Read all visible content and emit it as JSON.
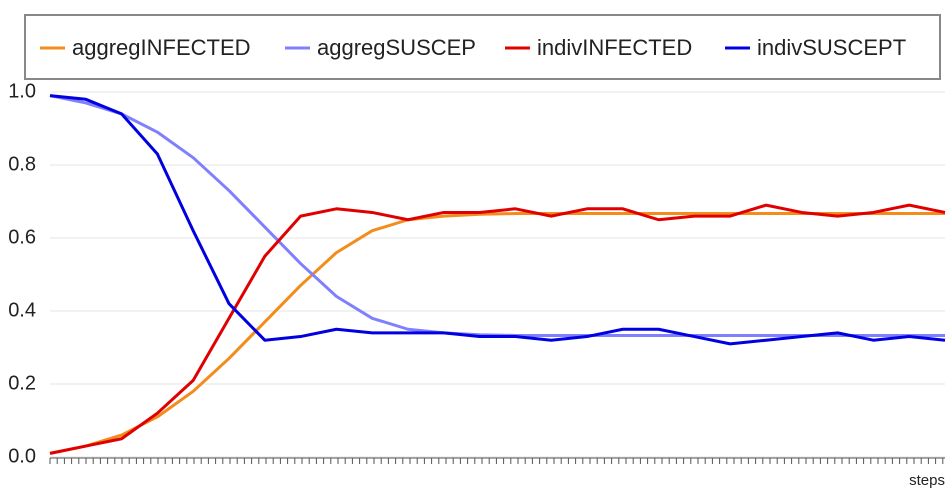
{
  "chart_data": {
    "type": "line",
    "x_label": "steps",
    "x": [
      0,
      8,
      16,
      24,
      32,
      40,
      48,
      56,
      64,
      72,
      80,
      88,
      96,
      104,
      112,
      120,
      128,
      136,
      144,
      152,
      160,
      168,
      176,
      184,
      192,
      200
    ],
    "xlim": [
      0,
      200
    ],
    "ylim": [
      0,
      1
    ],
    "yticks": [
      {
        "value": 0,
        "label": "0.0"
      },
      {
        "value": 0.2,
        "label": "0.2"
      },
      {
        "value": 0.4,
        "label": "0.4"
      },
      {
        "value": 0.6,
        "label": "0.6"
      },
      {
        "value": 0.8,
        "label": "0.8"
      },
      {
        "value": 1,
        "label": "1.0"
      }
    ],
    "grid": true,
    "legend": "top",
    "series": [
      {
        "name": "aggregINFECTED",
        "color": "#f28c1c",
        "values": [
          0.01,
          0.03,
          0.06,
          0.11,
          0.18,
          0.27,
          0.37,
          0.47,
          0.56,
          0.62,
          0.65,
          0.66,
          0.665,
          0.667,
          0.667,
          0.667,
          0.667,
          0.667,
          0.667,
          0.667,
          0.667,
          0.667,
          0.667,
          0.667,
          0.667,
          0.667
        ]
      },
      {
        "name": "aggregSUSCEP",
        "color": "#8080ff",
        "values": [
          0.99,
          0.97,
          0.94,
          0.89,
          0.82,
          0.73,
          0.63,
          0.53,
          0.44,
          0.38,
          0.35,
          0.34,
          0.335,
          0.333,
          0.333,
          0.333,
          0.333,
          0.333,
          0.333,
          0.333,
          0.333,
          0.333,
          0.333,
          0.333,
          0.333,
          0.333
        ]
      },
      {
        "name": "indivINFECTED",
        "color": "#e00000",
        "values": [
          0.01,
          0.03,
          0.05,
          0.12,
          0.21,
          0.38,
          0.55,
          0.66,
          0.68,
          0.67,
          0.65,
          0.67,
          0.67,
          0.68,
          0.66,
          0.68,
          0.68,
          0.65,
          0.66,
          0.66,
          0.69,
          0.67,
          0.66,
          0.67,
          0.69,
          0.67
        ]
      },
      {
        "name": "indivSUSCEPT",
        "color": "#0000e0",
        "values": [
          0.99,
          0.98,
          0.94,
          0.83,
          0.62,
          0.42,
          0.32,
          0.33,
          0.35,
          0.34,
          0.34,
          0.34,
          0.33,
          0.33,
          0.32,
          0.33,
          0.35,
          0.35,
          0.33,
          0.31,
          0.32,
          0.33,
          0.34,
          0.32,
          0.33,
          0.32
        ]
      }
    ]
  }
}
